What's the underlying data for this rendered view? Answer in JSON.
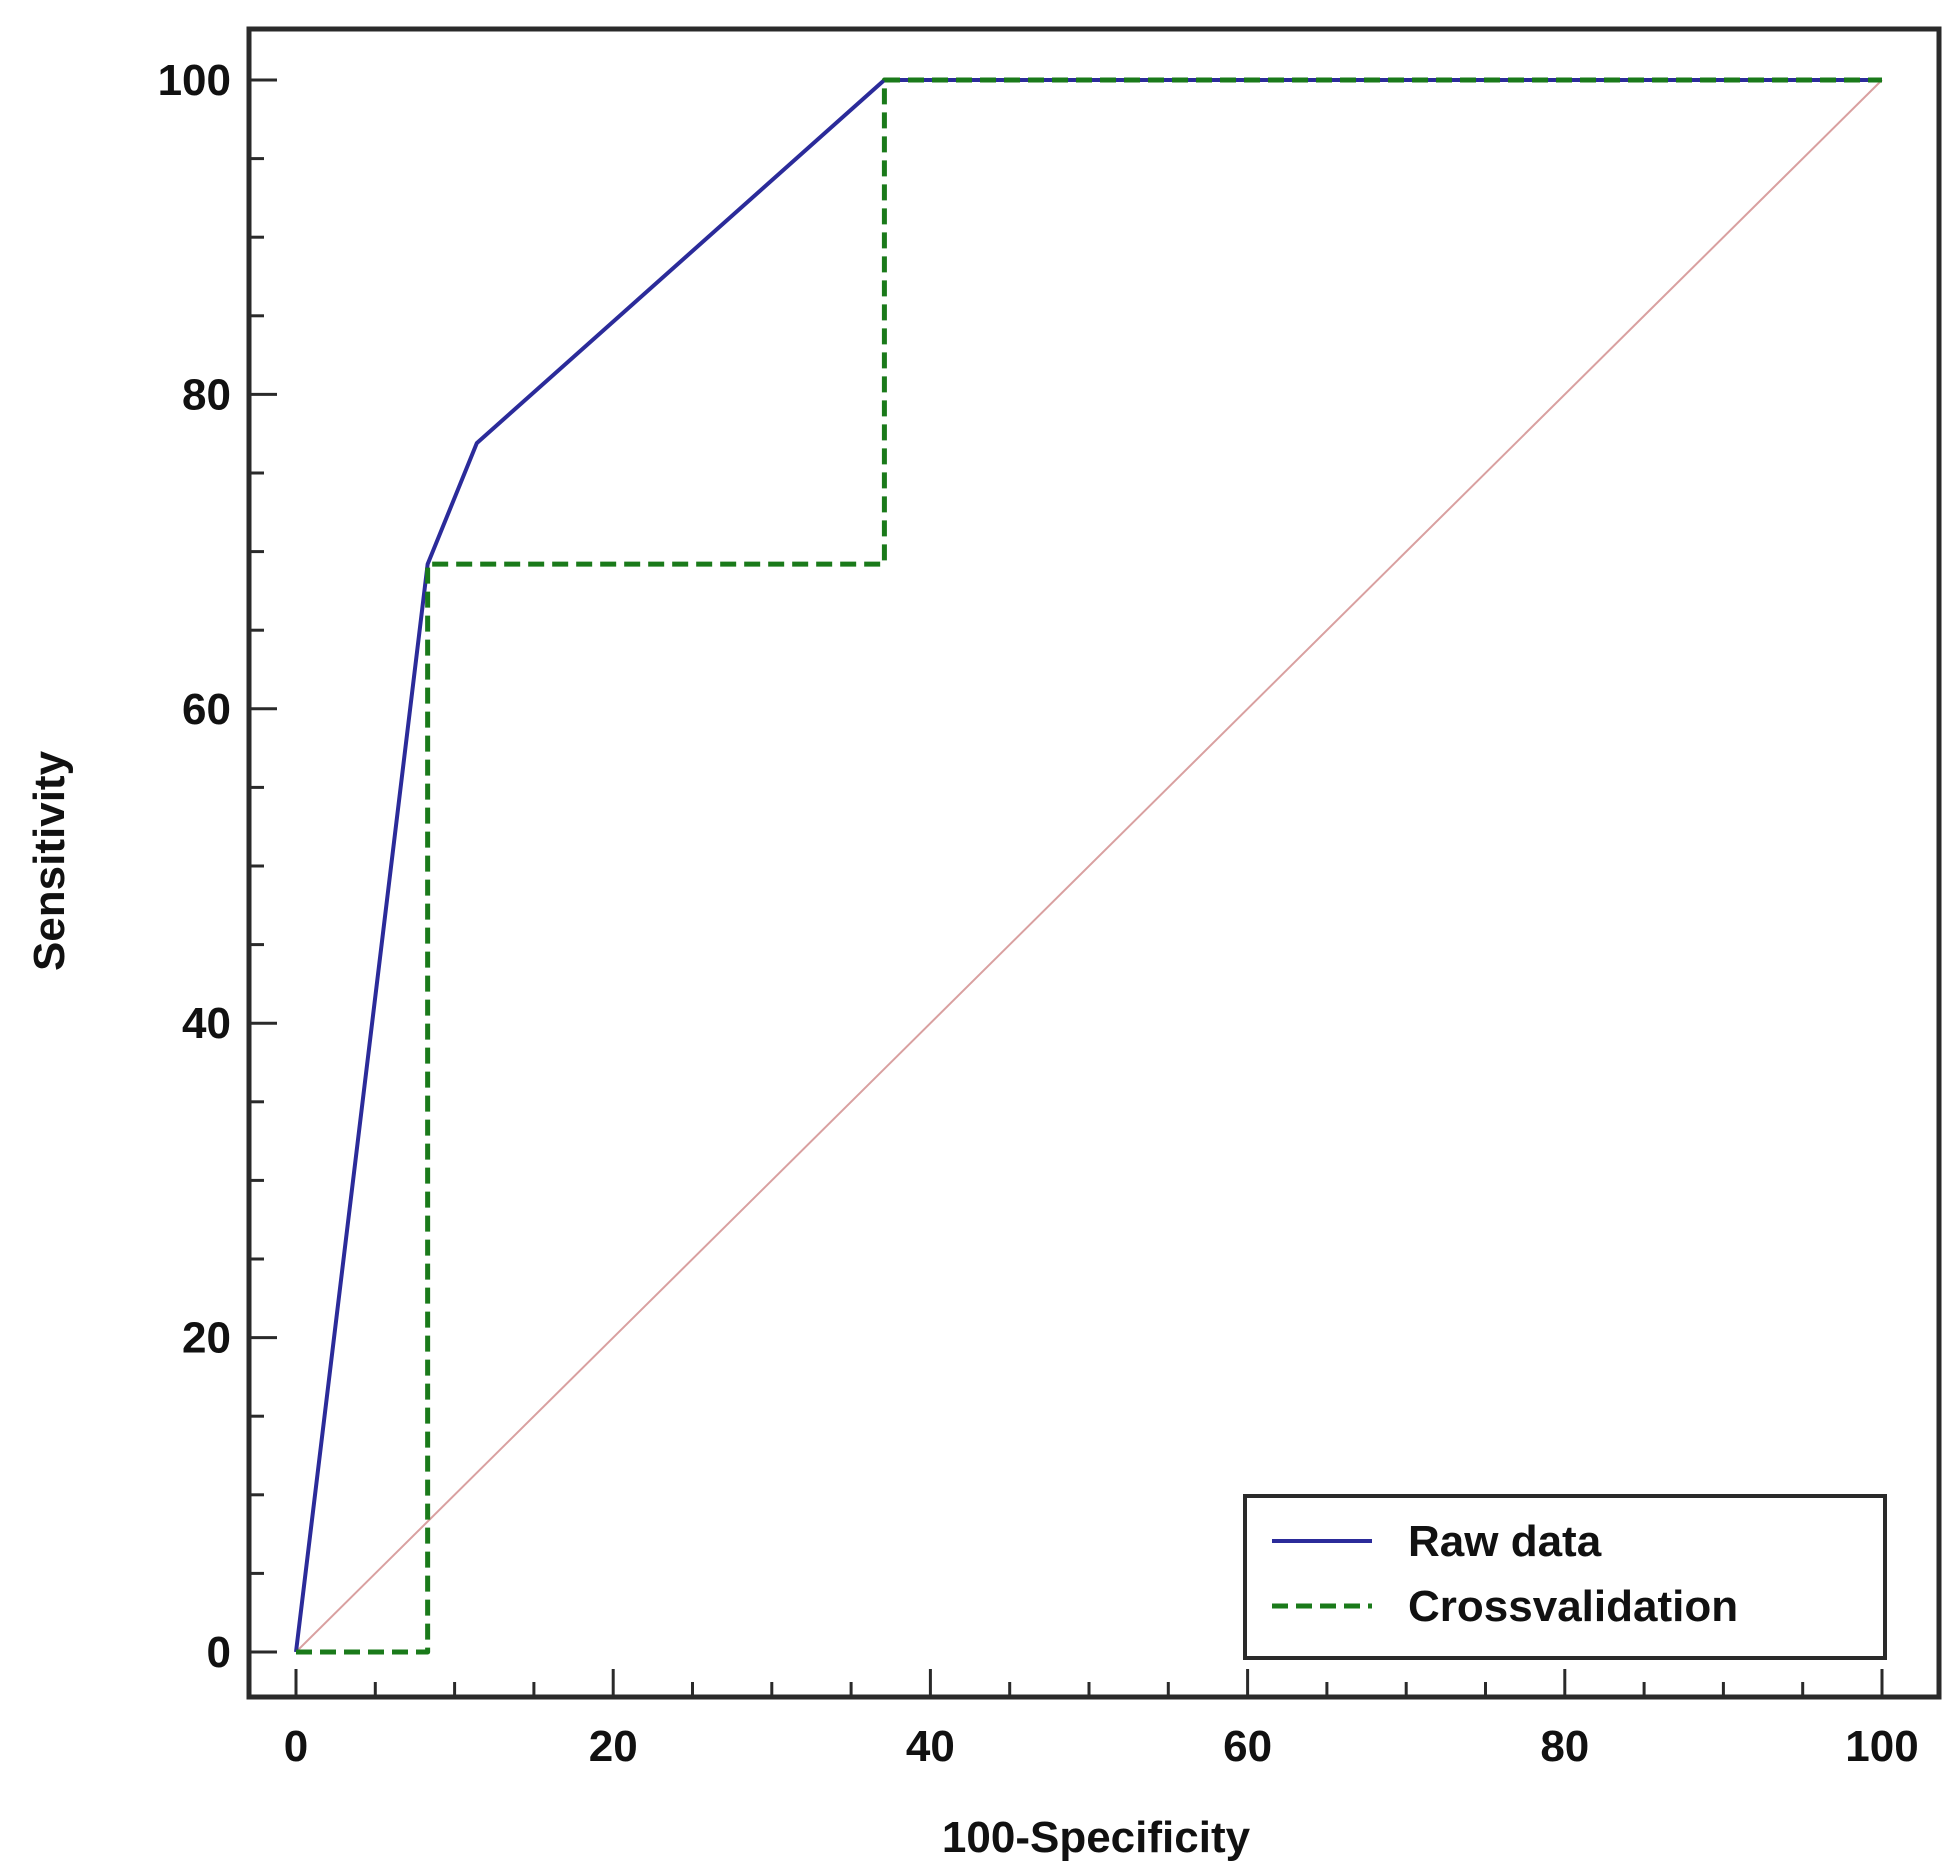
{
  "chart_data": {
    "type": "line",
    "xlabel": "100-Specificity",
    "ylabel": "Sensitivity",
    "xlim": [
      0,
      100
    ],
    "ylim": [
      0,
      100
    ],
    "x_ticks": [
      0,
      20,
      40,
      60,
      80,
      100
    ],
    "y_ticks": [
      0,
      20,
      40,
      60,
      80,
      100
    ],
    "x_minor_step": 5,
    "y_minor_step": 5,
    "grid": false,
    "legend_position": "bottom-right",
    "series": [
      {
        "name": "Raw data",
        "color": "#2b2b9a",
        "style": "solid",
        "points": [
          [
            0,
            0
          ],
          [
            8.3,
            69.2
          ],
          [
            11.4,
            76.9
          ],
          [
            37.1,
            100
          ],
          [
            100,
            100
          ]
        ]
      },
      {
        "name": "Crossvalidation",
        "color": "#1a7a1a",
        "style": "dashed",
        "points": [
          [
            0,
            0
          ],
          [
            8.3,
            0
          ],
          [
            8.3,
            69.2
          ],
          [
            37.1,
            69.2
          ],
          [
            37.1,
            100
          ],
          [
            100,
            100
          ]
        ]
      }
    ],
    "reference_line": {
      "color": "#d9a0a0",
      "points": [
        [
          0,
          0
        ],
        [
          100,
          100
        ]
      ]
    }
  }
}
